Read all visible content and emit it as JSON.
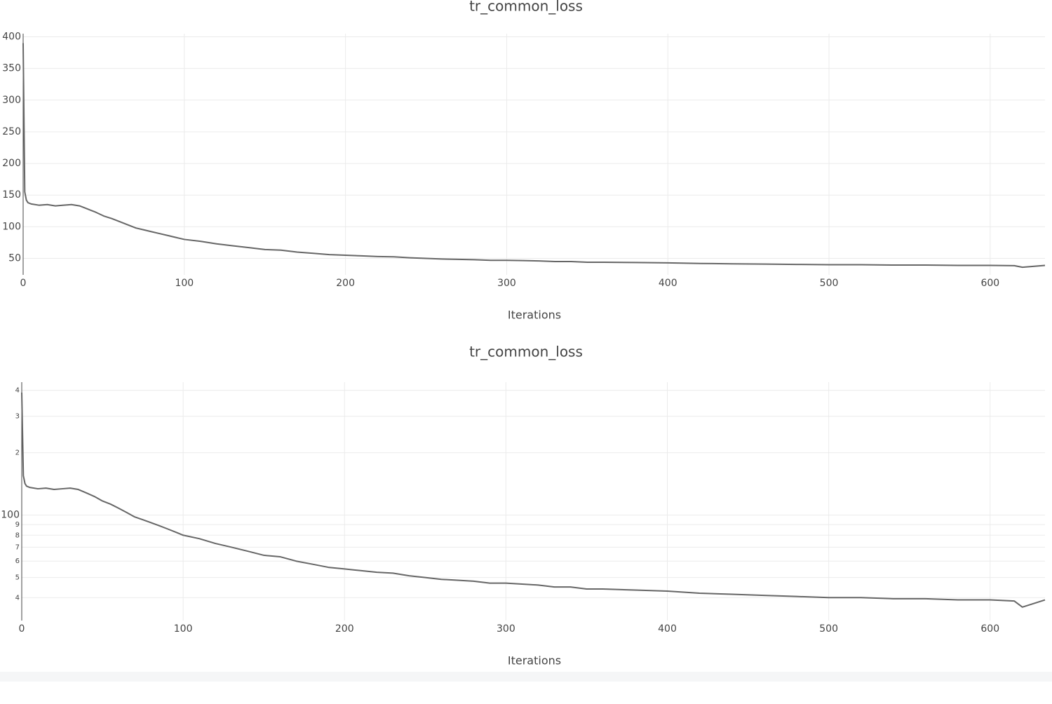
{
  "chart_data": [
    {
      "type": "line",
      "title": "tr_common_loss",
      "xlabel": "Iterations",
      "color": "#666666",
      "grid": true,
      "log_y": false,
      "x": [
        0,
        1,
        2,
        3,
        5,
        10,
        15,
        20,
        25,
        30,
        35,
        40,
        45,
        50,
        55,
        60,
        65,
        70,
        75,
        80,
        85,
        90,
        95,
        100,
        110,
        120,
        130,
        140,
        150,
        160,
        170,
        180,
        190,
        200,
        210,
        220,
        230,
        240,
        250,
        260,
        270,
        280,
        290,
        300,
        310,
        320,
        330,
        340,
        350,
        360,
        380,
        400,
        420,
        440,
        460,
        480,
        500,
        520,
        540,
        560,
        580,
        600,
        615,
        620,
        634
      ],
      "values": [
        390,
        155,
        142,
        138,
        136,
        134,
        135,
        133,
        134,
        135,
        133,
        128,
        123,
        117,
        113,
        108,
        103,
        98,
        95,
        92,
        89,
        86,
        83,
        80,
        77,
        73,
        70,
        67,
        64,
        63,
        60,
        58,
        56,
        55,
        54,
        53,
        52.5,
        51,
        50,
        49,
        48.5,
        48,
        47,
        47,
        46.5,
        46,
        45,
        45,
        44,
        44,
        43.5,
        43,
        42,
        41.5,
        41,
        40.5,
        40,
        40,
        39.5,
        39.5,
        39,
        39,
        38.5,
        36,
        39
      ],
      "xlim": [
        0,
        634
      ],
      "xticks": [
        0,
        100,
        200,
        300,
        400,
        500,
        600
      ],
      "ylim": [
        24,
        405
      ],
      "yticks": [
        50,
        100,
        150,
        200,
        250,
        300,
        350,
        400
      ]
    },
    {
      "type": "line",
      "title": "tr_common_loss",
      "xlabel": "Iterations",
      "color": "#666666",
      "grid": true,
      "log_y": true,
      "x": [
        0,
        1,
        2,
        3,
        5,
        10,
        15,
        20,
        25,
        30,
        35,
        40,
        45,
        50,
        55,
        60,
        65,
        70,
        75,
        80,
        85,
        90,
        95,
        100,
        110,
        120,
        130,
        140,
        150,
        160,
        170,
        180,
        190,
        200,
        210,
        220,
        230,
        240,
        250,
        260,
        270,
        280,
        290,
        300,
        310,
        320,
        330,
        340,
        350,
        360,
        380,
        400,
        420,
        440,
        460,
        480,
        500,
        520,
        540,
        560,
        580,
        600,
        615,
        620,
        634
      ],
      "values": [
        390,
        155,
        142,
        138,
        136,
        134,
        135,
        133,
        134,
        135,
        133,
        128,
        123,
        117,
        113,
        108,
        103,
        98,
        95,
        92,
        89,
        86,
        83,
        80,
        77,
        73,
        70,
        67,
        64,
        63,
        60,
        58,
        56,
        55,
        54,
        53,
        52.5,
        51,
        50,
        49,
        48.5,
        48,
        47,
        47,
        46.5,
        46,
        45,
        45,
        44,
        44,
        43.5,
        43,
        42,
        41.5,
        41,
        40.5,
        40,
        40,
        39.5,
        39.5,
        39,
        39,
        38.5,
        36,
        39
      ],
      "xlim": [
        0,
        634
      ],
      "xticks": [
        0,
        100,
        200,
        300,
        400,
        500,
        600
      ],
      "ylim": [
        31,
        438
      ],
      "yticks": [
        {
          "value": 40,
          "label": "4"
        },
        {
          "value": 50,
          "label": "5"
        },
        {
          "value": 60,
          "label": "6"
        },
        {
          "value": 70,
          "label": "7"
        },
        {
          "value": 80,
          "label": "8"
        },
        {
          "value": 90,
          "label": "9"
        },
        100,
        {
          "value": 200,
          "label": "2"
        },
        {
          "value": 300,
          "label": "3"
        },
        {
          "value": 400,
          "label": "4"
        }
      ]
    }
  ]
}
